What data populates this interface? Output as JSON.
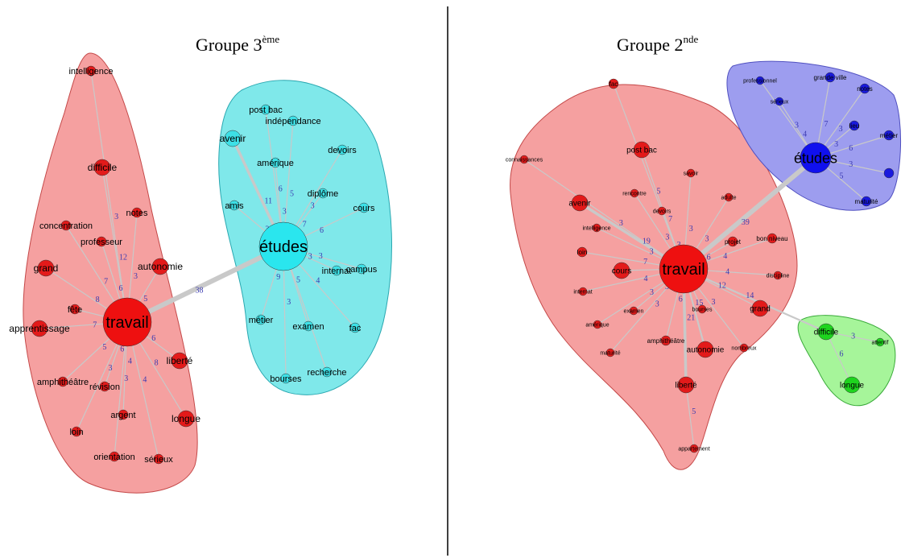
{
  "panels": [
    {
      "id": "g3",
      "title_main": "Groupe 3",
      "title_sup": "ème",
      "clusters": [
        {
          "name": "travail-cluster",
          "fill": "#f5a0a0",
          "stroke": "#c44848"
        },
        {
          "name": "etudes-cluster",
          "fill": "#7fe8ea",
          "stroke": "#29a7b0"
        }
      ],
      "nodes": [
        {
          "id": "intelligence",
          "label": "intelligence",
          "size": "s",
          "color": "#e31a1a"
        },
        {
          "id": "difficile",
          "label": "difficile",
          "size": "m",
          "color": "#e31a1a"
        },
        {
          "id": "notes",
          "label": "notes",
          "size": "s",
          "color": "#e31a1a"
        },
        {
          "id": "concentration",
          "label": "concentration",
          "size": "s",
          "color": "#e31a1a"
        },
        {
          "id": "professeur",
          "label": "professeur",
          "size": "s",
          "color": "#e31a1a"
        },
        {
          "id": "grand",
          "label": "grand",
          "size": "m",
          "color": "#e31a1a"
        },
        {
          "id": "autonomie",
          "label": "autonomie",
          "size": "m",
          "color": "#e31a1a"
        },
        {
          "id": "fete",
          "label": "fête",
          "size": "s",
          "color": "#e31a1a"
        },
        {
          "id": "apprentissage",
          "label": "apprentissage",
          "size": "m",
          "color": "#e31a1a"
        },
        {
          "id": "travail",
          "label": "travail",
          "size": "xl",
          "color": "#ee1010"
        },
        {
          "id": "liberte",
          "label": "liberté",
          "size": "m",
          "color": "#e31a1a"
        },
        {
          "id": "amphitheatre",
          "label": "amphithéâtre",
          "size": "s",
          "color": "#e31a1a"
        },
        {
          "id": "revision",
          "label": "révision",
          "size": "s",
          "color": "#e31a1a"
        },
        {
          "id": "argent",
          "label": "argent",
          "size": "s",
          "color": "#e31a1a"
        },
        {
          "id": "longue",
          "label": "longue",
          "size": "m",
          "color": "#e31a1a"
        },
        {
          "id": "loin",
          "label": "loin",
          "size": "s",
          "color": "#e31a1a"
        },
        {
          "id": "orientation",
          "label": "orientation",
          "size": "s",
          "color": "#e31a1a"
        },
        {
          "id": "serieux",
          "label": "sérieux",
          "size": "s",
          "color": "#e31a1a"
        },
        {
          "id": "postbac",
          "label": "post bac",
          "size": "s",
          "color": "#3de0e6"
        },
        {
          "id": "independance",
          "label": "indépendance",
          "size": "s",
          "color": "#3de0e6"
        },
        {
          "id": "avenir",
          "label": "avenir",
          "size": "m",
          "color": "#3de0e6"
        },
        {
          "id": "amerique",
          "label": "amérique",
          "size": "s",
          "color": "#3de0e6"
        },
        {
          "id": "devoirs",
          "label": "devoirs",
          "size": "s",
          "color": "#3de0e6"
        },
        {
          "id": "diplome",
          "label": "diplôme",
          "size": "s",
          "color": "#3de0e6"
        },
        {
          "id": "amis",
          "label": "amis",
          "size": "s",
          "color": "#3de0e6"
        },
        {
          "id": "cours",
          "label": "cours",
          "size": "s",
          "color": "#3de0e6"
        },
        {
          "id": "etudes",
          "label": "études",
          "size": "xl",
          "color": "#2ae6ee"
        },
        {
          "id": "internat",
          "label": "internat",
          "size": "s",
          "color": "#3de0e6"
        },
        {
          "id": "campus",
          "label": "campus",
          "size": "s",
          "color": "#3de0e6"
        },
        {
          "id": "metier",
          "label": "métier",
          "size": "s",
          "color": "#3de0e6"
        },
        {
          "id": "examen",
          "label": "examen",
          "size": "s",
          "color": "#3de0e6"
        },
        {
          "id": "fac",
          "label": "fac",
          "size": "s",
          "color": "#3de0e6"
        },
        {
          "id": "bourses",
          "label": "bourses",
          "size": "s",
          "color": "#3de0e6"
        },
        {
          "id": "recherche",
          "label": "recherche",
          "size": "s",
          "color": "#3de0e6"
        }
      ],
      "edges": [
        {
          "from": "travail",
          "to": "etudes",
          "label": "38",
          "weight": "heavy"
        },
        {
          "from": "travail",
          "to": "intelligence",
          "label": "3"
        },
        {
          "from": "travail",
          "to": "difficile",
          "label": "12"
        },
        {
          "from": "travail",
          "to": "notes",
          "label": "3"
        },
        {
          "from": "travail",
          "to": "concentration",
          "label": "7"
        },
        {
          "from": "travail",
          "to": "professeur",
          "label": "6"
        },
        {
          "from": "travail",
          "to": "grand",
          "label": "8"
        },
        {
          "from": "travail",
          "to": "autonomie",
          "label": "5"
        },
        {
          "from": "travail",
          "to": "fete",
          "label": "4"
        },
        {
          "from": "travail",
          "to": "apprentissage",
          "label": "7"
        },
        {
          "from": "travail",
          "to": "liberte",
          "label": "6"
        },
        {
          "from": "travail",
          "to": "amphitheatre",
          "label": "5"
        },
        {
          "from": "travail",
          "to": "revision",
          "label": "6"
        },
        {
          "from": "travail",
          "to": "argent",
          "label": "4"
        },
        {
          "from": "travail",
          "to": "longue",
          "label": "8"
        },
        {
          "from": "travail",
          "to": "loin",
          "label": "3"
        },
        {
          "from": "travail",
          "to": "orientation",
          "label": "3"
        },
        {
          "from": "travail",
          "to": "serieux",
          "label": "4"
        },
        {
          "from": "etudes",
          "to": "avenir",
          "label": "11",
          "weight": "medium"
        },
        {
          "from": "etudes",
          "to": "postbac",
          "label": "6"
        },
        {
          "from": "etudes",
          "to": "independance",
          "label": "5"
        },
        {
          "from": "etudes",
          "to": "amerique",
          "label": "3"
        },
        {
          "from": "etudes",
          "to": "devoirs",
          "label": "3"
        },
        {
          "from": "etudes",
          "to": "diplome",
          "label": "7"
        },
        {
          "from": "etudes",
          "to": "amis",
          "label": "3"
        },
        {
          "from": "etudes",
          "to": "cours",
          "label": "6"
        },
        {
          "from": "etudes",
          "to": "internat",
          "label": "3"
        },
        {
          "from": "etudes",
          "to": "campus",
          "label": "3"
        },
        {
          "from": "etudes",
          "to": "metier",
          "label": "9"
        },
        {
          "from": "etudes",
          "to": "examen",
          "label": "5"
        },
        {
          "from": "etudes",
          "to": "fac",
          "label": "4"
        },
        {
          "from": "etudes",
          "to": "bourses",
          "label": "3"
        },
        {
          "from": "etudes",
          "to": "recherche",
          "label": ""
        }
      ]
    },
    {
      "id": "g2",
      "title_main": "Groupe 2",
      "title_sup": "nde",
      "clusters": [
        {
          "name": "travail-cluster",
          "fill": "#f5a0a0",
          "stroke": "#c44848"
        },
        {
          "name": "etudes-cluster",
          "fill": "#9d9def",
          "stroke": "#5050c0"
        },
        {
          "name": "difficile-cluster",
          "fill": "#a6f59a",
          "stroke": "#3aaa3a"
        }
      ],
      "nodes": [
        {
          "id": "fac",
          "label": "fac",
          "size": "s",
          "color": "#e31a1a"
        },
        {
          "id": "connaissances",
          "label": "connaissances",
          "size": "xs",
          "color": "#e31a1a"
        },
        {
          "id": "postbac",
          "label": "post bac",
          "size": "m",
          "color": "#e31a1a"
        },
        {
          "id": "avenir",
          "label": "avenir",
          "size": "m",
          "color": "#e31a1a"
        },
        {
          "id": "rencontre",
          "label": "rencontre",
          "size": "xs",
          "color": "#e31a1a"
        },
        {
          "id": "devoirs",
          "label": "devoirs",
          "size": "xs",
          "color": "#e31a1a"
        },
        {
          "id": "savoir",
          "label": "savoir",
          "size": "xs",
          "color": "#e31a1a"
        },
        {
          "id": "adulte",
          "label": "adulte",
          "size": "xs",
          "color": "#e31a1a"
        },
        {
          "id": "intelligence",
          "label": "intelligence",
          "size": "xs",
          "color": "#e31a1a"
        },
        {
          "id": "loin",
          "label": "loin",
          "size": "s",
          "color": "#e31a1a"
        },
        {
          "id": "cours",
          "label": "cours",
          "size": "m",
          "color": "#e31a1a"
        },
        {
          "id": "travail",
          "label": "travail",
          "size": "xl",
          "color": "#ee1010"
        },
        {
          "id": "projet",
          "label": "projet",
          "size": "s",
          "color": "#e31a1a"
        },
        {
          "id": "bonniveau",
          "label": "bon niveau",
          "size": "s",
          "color": "#e31a1a"
        },
        {
          "id": "discipline",
          "label": "discipline",
          "size": "xs",
          "color": "#e31a1a"
        },
        {
          "id": "internat",
          "label": "internat",
          "size": "xs",
          "color": "#e31a1a"
        },
        {
          "id": "examen",
          "label": "examen",
          "size": "xs",
          "color": "#e31a1a"
        },
        {
          "id": "amerique",
          "label": "amérique",
          "size": "xs",
          "color": "#e31a1a"
        },
        {
          "id": "bourses",
          "label": "bourses",
          "size": "xs",
          "color": "#e31a1a"
        },
        {
          "id": "grand",
          "label": "grand",
          "size": "m",
          "color": "#e31a1a"
        },
        {
          "id": "amphitheatre",
          "label": "amphithéâtre",
          "size": "s",
          "color": "#e31a1a"
        },
        {
          "id": "maturite",
          "label": "maturité",
          "size": "xs",
          "color": "#e31a1a"
        },
        {
          "id": "autonomie",
          "label": "autonomie",
          "size": "m",
          "color": "#e31a1a"
        },
        {
          "id": "nombreux",
          "label": "nombreux",
          "size": "xs",
          "color": "#e31a1a"
        },
        {
          "id": "liberte",
          "label": "liberté",
          "size": "m",
          "color": "#e31a1a"
        },
        {
          "id": "appartement",
          "label": "appartement",
          "size": "xs",
          "color": "#e31a1a"
        },
        {
          "id": "professionnel",
          "label": "professionnel",
          "size": "xs",
          "color": "#1a1add"
        },
        {
          "id": "grandeville",
          "label": "grande ville",
          "size": "s",
          "color": "#1a1add"
        },
        {
          "id": "notes",
          "label": "notes",
          "size": "s",
          "color": "#1a1add"
        },
        {
          "id": "serieux",
          "label": "sérieux",
          "size": "xs",
          "color": "#1a1add"
        },
        {
          "id": "lieu",
          "label": "lieu",
          "size": "s",
          "color": "#1a1add"
        },
        {
          "id": "etudes",
          "label": "études",
          "size": "l",
          "color": "#1010ee"
        },
        {
          "id": "metier",
          "label": "métier",
          "size": "s",
          "color": "#1a1add"
        },
        {
          "id": "extra",
          "label": "",
          "size": "s",
          "color": "#1a1add"
        },
        {
          "id": "maturiteb",
          "label": "maturité",
          "size": "s",
          "color": "#1a1add"
        },
        {
          "id": "difficile",
          "label": "difficile",
          "size": "m",
          "color": "#1ed41e"
        },
        {
          "id": "attentif",
          "label": "attentif",
          "size": "xs",
          "color": "#1ed41e"
        },
        {
          "id": "longue",
          "label": "longue",
          "size": "m",
          "color": "#1ed41e"
        }
      ],
      "edges": [
        {
          "from": "travail",
          "to": "etudes",
          "label": "39",
          "weight": "heavy"
        },
        {
          "from": "travail",
          "to": "difficile",
          "label": "14",
          "weight": "light"
        },
        {
          "from": "travail",
          "to": "fac",
          "label": "5"
        },
        {
          "from": "travail",
          "to": "connaissances",
          "label": "3"
        },
        {
          "from": "travail",
          "to": "postbac",
          "label": "7"
        },
        {
          "from": "travail",
          "to": "avenir",
          "label": "19",
          "weight": "medium"
        },
        {
          "from": "travail",
          "to": "rencontre",
          "label": "3"
        },
        {
          "from": "travail",
          "to": "devoirs",
          "label": "3"
        },
        {
          "from": "travail",
          "to": "savoir",
          "label": "3"
        },
        {
          "from": "travail",
          "to": "adulte",
          "label": "3"
        },
        {
          "from": "travail",
          "to": "intelligence",
          "label": "3"
        },
        {
          "from": "travail",
          "to": "loin",
          "label": "7"
        },
        {
          "from": "travail",
          "to": "cours",
          "label": "7"
        },
        {
          "from": "travail",
          "to": "projet",
          "label": "6"
        },
        {
          "from": "travail",
          "to": "bonniveau",
          "label": "4"
        },
        {
          "from": "travail",
          "to": "discipline",
          "label": "4"
        },
        {
          "from": "travail",
          "to": "internat",
          "label": "4"
        },
        {
          "from": "travail",
          "to": "examen",
          "label": "3"
        },
        {
          "from": "travail",
          "to": "amerique",
          "label": "3"
        },
        {
          "from": "travail",
          "to": "bourses",
          "label": "3"
        },
        {
          "from": "travail",
          "to": "grand",
          "label": "12"
        },
        {
          "from": "travail",
          "to": "amphitheatre",
          "label": "6"
        },
        {
          "from": "travail",
          "to": "maturite",
          "label": "3"
        },
        {
          "from": "travail",
          "to": "autonomie",
          "label": "15",
          "weight": "light"
        },
        {
          "from": "travail",
          "to": "nombreux",
          "label": "3"
        },
        {
          "from": "travail",
          "to": "liberte",
          "label": "21",
          "weight": "medium"
        },
        {
          "from": "liberte",
          "to": "appartement",
          "label": "5"
        },
        {
          "from": "etudes",
          "to": "professionnel",
          "label": "3"
        },
        {
          "from": "etudes",
          "to": "grandeville",
          "label": "7"
        },
        {
          "from": "etudes",
          "to": "notes",
          "label": "3"
        },
        {
          "from": "etudes",
          "to": "serieux",
          "label": "4"
        },
        {
          "from": "etudes",
          "to": "lieu",
          "label": "3"
        },
        {
          "from": "etudes",
          "to": "metier",
          "label": "6"
        },
        {
          "from": "etudes",
          "to": "extra",
          "label": "3"
        },
        {
          "from": "etudes",
          "to": "maturiteb",
          "label": "5"
        },
        {
          "from": "difficile",
          "to": "attentif",
          "label": "3"
        },
        {
          "from": "difficile",
          "to": "longue",
          "label": "6"
        }
      ]
    }
  ]
}
